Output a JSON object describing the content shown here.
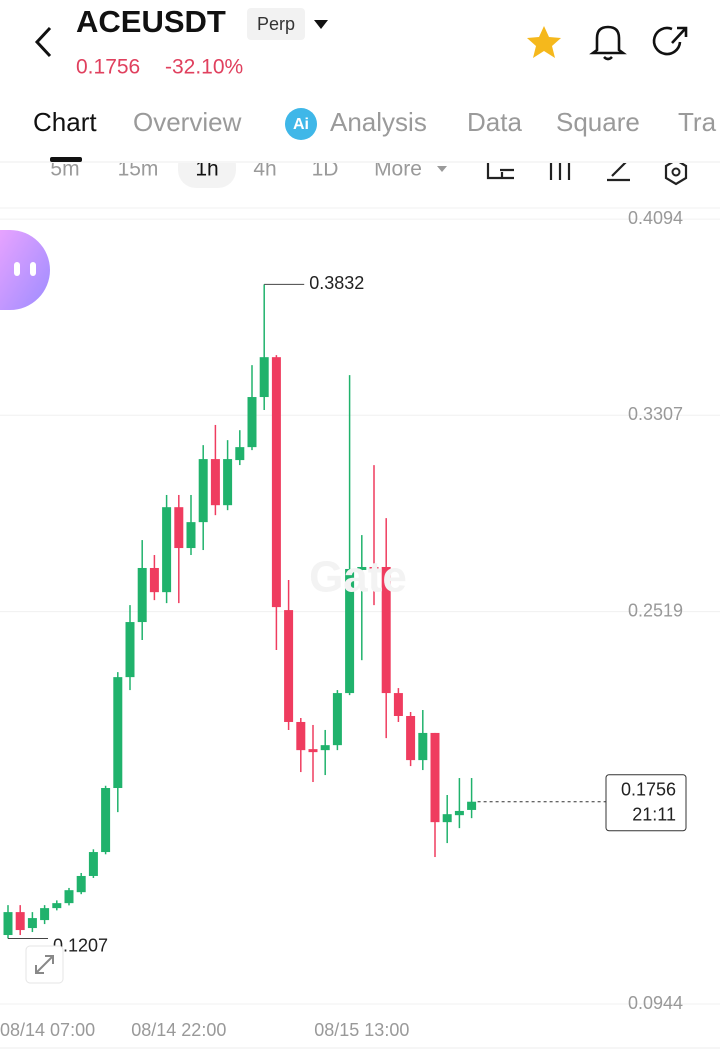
{
  "header": {
    "symbol": "ACEUSDT",
    "badge": "Perp",
    "price": "0.1756",
    "change": "-32.10%"
  },
  "tabs": [
    "Chart",
    "Overview",
    "Analysis",
    "Data",
    "Square",
    "Tra"
  ],
  "intervals": [
    "5m",
    "15m",
    "1h",
    "4h",
    "1D",
    "More"
  ],
  "chart_data": {
    "type": "candlestick",
    "categories": [
      "08/14 07:00",
      null,
      null,
      null,
      null,
      null,
      null,
      null,
      null,
      null,
      null,
      null,
      null,
      null,
      "08/14 22:00",
      null,
      null,
      null,
      null,
      null,
      null,
      null,
      null,
      null,
      null,
      null,
      null,
      null,
      null,
      "08/15 13:00",
      null,
      null,
      null,
      null,
      null,
      null,
      null,
      null,
      null
    ],
    "open": [
      0.1221,
      0.1313,
      0.1249,
      0.1281,
      0.1329,
      0.1349,
      0.1393,
      0.1458,
      0.1554,
      0.1811,
      0.2256,
      0.2477,
      0.2694,
      0.2597,
      0.2938,
      0.2774,
      0.2878,
      0.3131,
      0.2946,
      0.3127,
      0.3179,
      0.338,
      0.354,
      0.2525,
      0.2076,
      0.1967,
      0.1963,
      0.1983,
      0.2192,
      0.2686,
      0.2698,
      0.2698,
      0.2192,
      0.21,
      0.1923,
      0.2032,
      0.1674,
      0.1702,
      0.1723
    ],
    "high": [
      0.1341,
      0.1341,
      0.1313,
      0.1341,
      0.136,
      0.141,
      0.147,
      0.1565,
      0.182,
      0.2276,
      0.2545,
      0.2806,
      0.2746,
      0.2987,
      0.2987,
      0.2987,
      0.3187,
      0.3268,
      0.3207,
      0.3247,
      0.3508,
      0.3832,
      0.3548,
      0.2646,
      0.2092,
      0.2064,
      0.2044,
      0.2204,
      0.3468,
      0.2826,
      0.3107,
      0.2894,
      0.2212,
      0.2116,
      0.2124,
      0.2032,
      0.1783,
      0.1851,
      0.1851
    ],
    "low": [
      0.1207,
      0.1221,
      0.1233,
      0.1265,
      0.132,
      0.134,
      0.1385,
      0.145,
      0.1545,
      0.1714,
      0.2204,
      0.2405,
      0.2565,
      0.2553,
      0.2553,
      0.2746,
      0.2766,
      0.2906,
      0.2926,
      0.3107,
      0.3167,
      0.3328,
      0.2365,
      0.2044,
      0.1875,
      0.1835,
      0.1863,
      0.1963,
      0.2184,
      0.2324,
      0.2545,
      0.2011,
      0.2076,
      0.1899,
      0.1883,
      0.1534,
      0.159,
      0.165,
      0.169
    ],
    "close": [
      0.1313,
      0.1241,
      0.1289,
      0.1329,
      0.1349,
      0.1401,
      0.1458,
      0.1554,
      0.1811,
      0.2256,
      0.2477,
      0.2694,
      0.2597,
      0.2938,
      0.2774,
      0.2878,
      0.3131,
      0.2946,
      0.3131,
      0.3179,
      0.338,
      0.354,
      0.2537,
      0.2076,
      0.1963,
      0.1955,
      0.1983,
      0.2192,
      0.269,
      0.2698,
      0.2686,
      0.2192,
      0.21,
      0.1923,
      0.2032,
      0.1674,
      0.1706,
      0.1719,
      0.1756
    ],
    "up_color": "#20b26c",
    "down_color": "#ef3c5f",
    "ylim": [
      0.088,
      0.4251
    ],
    "yticks": [
      0.0944,
      0.2519,
      0.3307,
      0.4094
    ],
    "grid": true,
    "countdown": "21:11"
  }
}
